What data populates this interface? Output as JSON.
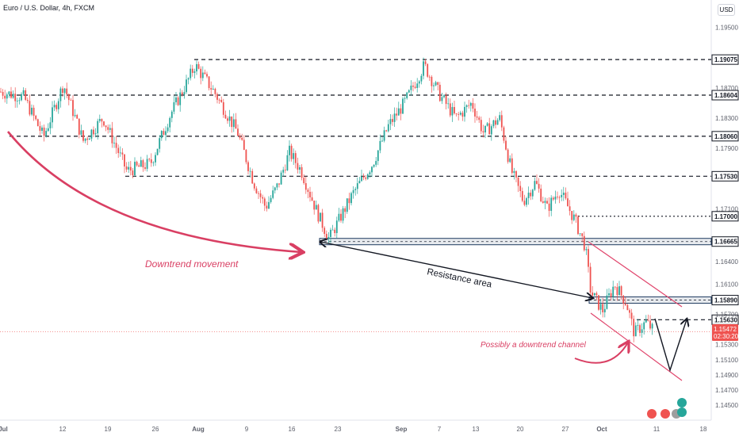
{
  "header": {
    "title": "Euro / U.S. Dollar, 4h, FXCM",
    "currency": "USD"
  },
  "colors": {
    "up": "#26a69a",
    "down": "#ef5350",
    "annotation": "#d93f63",
    "arrow": "#131722",
    "channel": "#e0456c"
  },
  "chart_data": {
    "type": "candlestick",
    "y_ticks": [
      "1.19500",
      "1.18700",
      "1.18300",
      "1.17900",
      "1.17100",
      "1.16400",
      "1.16100",
      "1.15700",
      "1.15300",
      "1.15100",
      "1.14900",
      "1.14700",
      "1.14500"
    ],
    "ylim": [
      1.143,
      1.1978
    ],
    "x_ticks": [
      "Jul",
      "12",
      "19",
      "26",
      "Aug",
      "9",
      "16",
      "23",
      "Sep",
      "7",
      "13",
      "20",
      "27",
      "Oct",
      "11",
      "18"
    ],
    "x_ticks_bold": [
      "Jul",
      "Aug",
      "Sep",
      "Oct"
    ],
    "levels": [
      {
        "value": 1.19075,
        "label": "1.19075",
        "style": "dashed"
      },
      {
        "value": 1.18604,
        "label": "1.18604",
        "style": "dashed"
      },
      {
        "value": 1.1806,
        "label": "1.18060",
        "style": "dashed"
      },
      {
        "value": 1.1753,
        "label": "1.17530",
        "style": "dashed"
      },
      {
        "value": 1.17,
        "label": "1.17000",
        "style": "dotted"
      },
      {
        "value": 1.16665,
        "label": "1.16665",
        "style": "zone"
      },
      {
        "value": 1.1589,
        "label": "1.15890",
        "style": "zone"
      },
      {
        "value": 1.1563,
        "label": "1.15630",
        "style": "dashed"
      }
    ],
    "current_price": {
      "value": 1.15472,
      "label": "1.15472",
      "countdown": "02:30:20"
    },
    "annotations": [
      "Downtrend movement",
      "Resistance area",
      "Possibly a downtrend channel"
    ]
  }
}
